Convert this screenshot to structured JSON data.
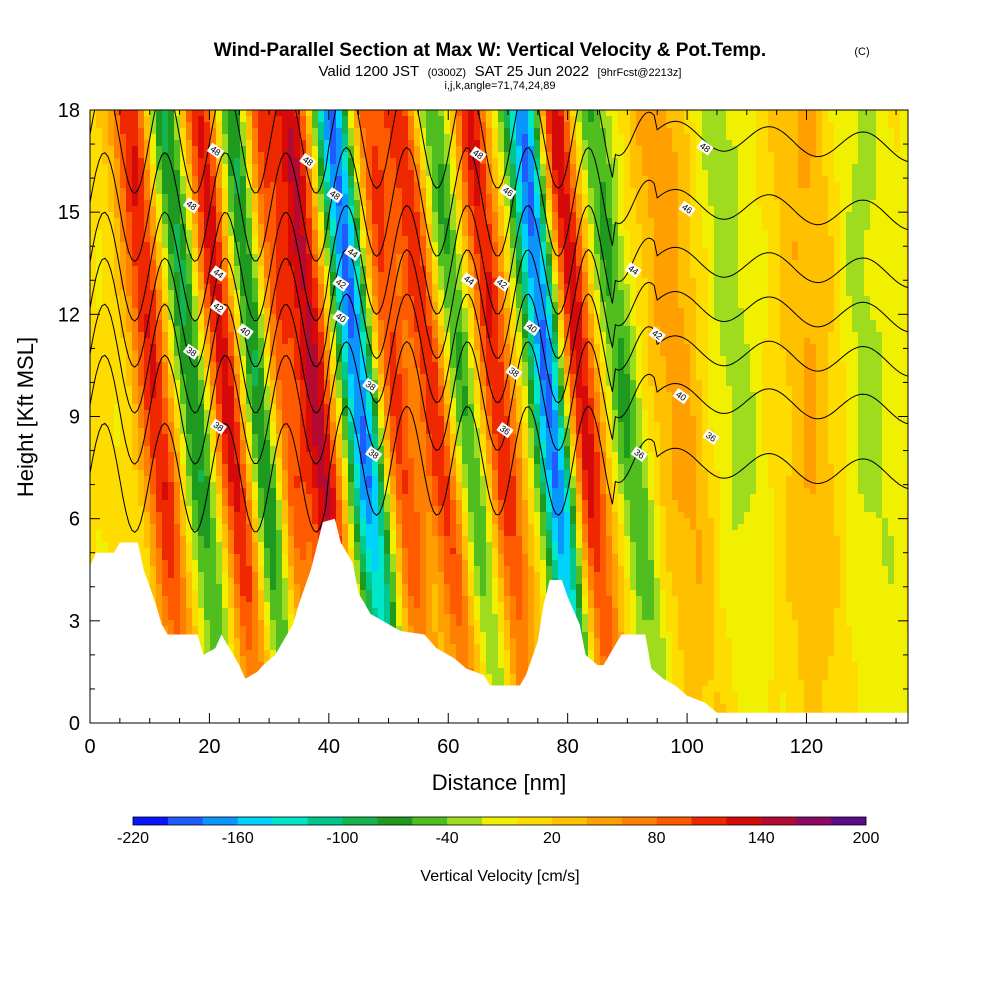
{
  "title": "Wind-Parallel Section at Max W: Vertical Velocity & Pot.Temp.",
  "title_mark": "(C)",
  "subtitle": {
    "prefix": "Valid 1200 JST",
    "zulu": "(0300Z)",
    "date": "SAT 25 Jun 2022",
    "fcst": "[9hrFcst@2213z]",
    "indices": "i,j,k,angle=71,74,24,89"
  },
  "chart_data": {
    "type": "heatmap",
    "xlabel": "Distance [nm]",
    "ylabel": "Height [Kft MSL]",
    "xlim": [
      0,
      137
    ],
    "ylim": [
      0,
      18
    ],
    "xticks": [
      0,
      20,
      40,
      60,
      80,
      100,
      120
    ],
    "yticks": [
      0,
      3,
      6,
      9,
      12,
      15,
      18
    ],
    "colorbar": {
      "label": "Vertical Velocity [cm/s]",
      "ticks": [
        "-220",
        "-160",
        "-100",
        "-40",
        "20",
        "80",
        "140",
        "200"
      ],
      "colors": [
        "#0a14ff",
        "#1e5cff",
        "#0a96ff",
        "#00d2ff",
        "#00e6c8",
        "#00c88c",
        "#14b450",
        "#1e9b1e",
        "#50be1e",
        "#a0dc1e",
        "#f0f000",
        "#ffdc00",
        "#ffc000",
        "#ffa000",
        "#ff8000",
        "#ff5a00",
        "#f02800",
        "#d70a0a",
        "#b40a32",
        "#8c0a64",
        "#5a0a8c"
      ]
    },
    "updraft_bands": [
      {
        "x": 13,
        "tilt": 1.0,
        "sign": 1,
        "amp": 120
      },
      {
        "x": 19,
        "tilt": 1.0,
        "sign": -1,
        "amp": 90
      },
      {
        "x": 25,
        "tilt": 1.0,
        "sign": 1,
        "amp": 130
      },
      {
        "x": 30.5,
        "tilt": 1.0,
        "sign": -1,
        "amp": 120
      },
      {
        "x": 34,
        "tilt": 1.0,
        "sign": 1,
        "amp": 110
      },
      {
        "x": 40,
        "tilt": 1.0,
        "sign": 1,
        "amp": 140
      },
      {
        "x": 47,
        "tilt": 1.0,
        "sign": -1,
        "amp": 190
      },
      {
        "x": 53,
        "tilt": 1.0,
        "sign": 1,
        "amp": 100
      },
      {
        "x": 60,
        "tilt": 1.2,
        "sign": 1,
        "amp": 110
      },
      {
        "x": 65,
        "tilt": 1.2,
        "sign": -1,
        "amp": 80
      },
      {
        "x": 70,
        "tilt": 1.0,
        "sign": 1,
        "amp": 120
      },
      {
        "x": 79,
        "tilt": 1.0,
        "sign": -1,
        "amp": 200
      },
      {
        "x": 84,
        "tilt": 1.0,
        "sign": 1,
        "amp": 140
      },
      {
        "x": 92,
        "tilt": 1.2,
        "sign": -1,
        "amp": 70
      },
      {
        "x": 101,
        "tilt": 0.8,
        "sign": 1,
        "amp": 50
      },
      {
        "x": 108,
        "tilt": 0.6,
        "sign": -1,
        "amp": 40
      },
      {
        "x": 122,
        "tilt": 0.3,
        "sign": 1,
        "amp": 40
      },
      {
        "x": 130,
        "tilt": 0.3,
        "sign": -1,
        "amp": 35
      }
    ],
    "terrain": [
      [
        0,
        4.6
      ],
      [
        1,
        5.0
      ],
      [
        4,
        5.0
      ],
      [
        5,
        5.3
      ],
      [
        8,
        5.3
      ],
      [
        9,
        4.5
      ],
      [
        11,
        3.5
      ],
      [
        12,
        2.9
      ],
      [
        13,
        2.6
      ],
      [
        18,
        2.6
      ],
      [
        19,
        2.0
      ],
      [
        21,
        2.2
      ],
      [
        22,
        2.6
      ],
      [
        23,
        2.3
      ],
      [
        24,
        2.0
      ],
      [
        25,
        1.7
      ],
      [
        26,
        1.3
      ],
      [
        28,
        1.5
      ],
      [
        29,
        1.7
      ],
      [
        31,
        2.0
      ],
      [
        32,
        2.3
      ],
      [
        34,
        2.9
      ],
      [
        35,
        3.5
      ],
      [
        37,
        4.5
      ],
      [
        39,
        5.9
      ],
      [
        41,
        6.0
      ],
      [
        42,
        5.3
      ],
      [
        44,
        4.7
      ],
      [
        45,
        3.8
      ],
      [
        46,
        3.5
      ],
      [
        47,
        3.2
      ],
      [
        48,
        3.1
      ],
      [
        50,
        2.9
      ],
      [
        52,
        2.7
      ],
      [
        56,
        2.6
      ],
      [
        58,
        2.2
      ],
      [
        61,
        1.9
      ],
      [
        63,
        1.6
      ],
      [
        66,
        1.4
      ],
      [
        67,
        1.1
      ],
      [
        72,
        1.1
      ],
      [
        73,
        1.4
      ],
      [
        75,
        2.4
      ],
      [
        76,
        3.5
      ],
      [
        77,
        4.2
      ],
      [
        79,
        4.2
      ],
      [
        80,
        3.7
      ],
      [
        82,
        2.9
      ],
      [
        83,
        2.0
      ],
      [
        85,
        1.7
      ],
      [
        86,
        1.7
      ],
      [
        88,
        2.3
      ],
      [
        89,
        2.6
      ],
      [
        93,
        2.6
      ],
      [
        94,
        1.6
      ],
      [
        96,
        1.3
      ],
      [
        98,
        1.1
      ],
      [
        100,
        0.8
      ],
      [
        103,
        0.6
      ],
      [
        105,
        0.3
      ],
      [
        137,
        0.3
      ]
    ],
    "theta_contours": [
      {
        "value": 36,
        "base": 7.7,
        "low_amp": 1.0
      },
      {
        "value": 38,
        "base": 9.6,
        "low_amp": 0.8
      },
      {
        "value": 40,
        "base": 11.0,
        "low_amp": 0.6
      },
      {
        "value": 42,
        "base": 12.3,
        "low_amp": 0.5
      },
      {
        "value": 44,
        "base": 13.6,
        "low_amp": 0.4
      },
      {
        "value": 46,
        "base": 15.3,
        "low_amp": 0.3
      },
      {
        "value": 48,
        "base": 17.3,
        "low_amp": 0.3
      }
    ],
    "contour_labels": [
      {
        "text": "48",
        "x": 21,
        "y": 16.8
      },
      {
        "text": "48",
        "x": 36.5,
        "y": 16.5
      },
      {
        "text": "48",
        "x": 65,
        "y": 16.7
      },
      {
        "text": "48",
        "x": 103,
        "y": 16.9
      },
      {
        "text": "48",
        "x": 17,
        "y": 15.2
      },
      {
        "text": "48",
        "x": 41,
        "y": 15.5
      },
      {
        "text": "46",
        "x": 70,
        "y": 15.6
      },
      {
        "text": "46",
        "x": 100,
        "y": 15.1
      },
      {
        "text": "44",
        "x": 21.5,
        "y": 13.2
      },
      {
        "text": "44",
        "x": 44,
        "y": 13.8
      },
      {
        "text": "44",
        "x": 63.5,
        "y": 13.0
      },
      {
        "text": "44",
        "x": 91,
        "y": 13.3
      },
      {
        "text": "42",
        "x": 21.5,
        "y": 12.2
      },
      {
        "text": "42",
        "x": 42,
        "y": 12.9
      },
      {
        "text": "42",
        "x": 69,
        "y": 12.9
      },
      {
        "text": "42",
        "x": 95,
        "y": 11.4
      },
      {
        "text": "40",
        "x": 26,
        "y": 11.5
      },
      {
        "text": "40",
        "x": 42,
        "y": 11.9
      },
      {
        "text": "40",
        "x": 74,
        "y": 11.6
      },
      {
        "text": "40",
        "x": 99,
        "y": 9.6
      },
      {
        "text": "38",
        "x": 17,
        "y": 10.9
      },
      {
        "text": "38",
        "x": 47,
        "y": 9.9
      },
      {
        "text": "38",
        "x": 71,
        "y": 10.3
      },
      {
        "text": "38",
        "x": 21.5,
        "y": 8.7
      },
      {
        "text": "38",
        "x": 47.5,
        "y": 7.9
      },
      {
        "text": "36",
        "x": 69.5,
        "y": 8.6
      },
      {
        "text": "36",
        "x": 92,
        "y": 7.9
      },
      {
        "text": "36",
        "x": 104,
        "y": 8.4
      }
    ]
  }
}
